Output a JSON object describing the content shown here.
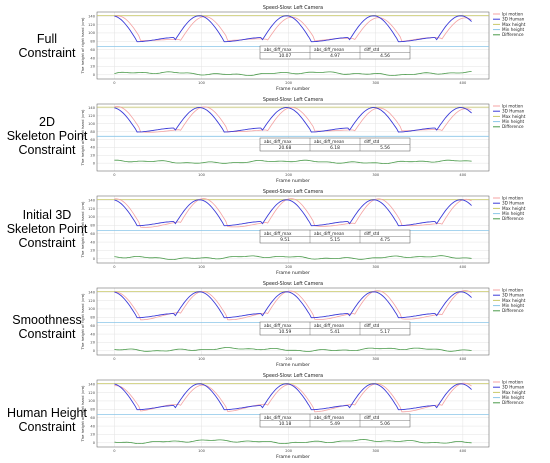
{
  "constraint_labels": [
    [
      "Full",
      "Constraint"
    ],
    [
      "2D",
      "Skeleton Point",
      "Constraint"
    ],
    [
      "Initial 3D",
      "Skeleton Point",
      "Constraint"
    ],
    [
      "Smoothness",
      "Constraint"
    ],
    [
      "Human Height",
      "Constraint"
    ]
  ],
  "chart_data": [
    {
      "type": "line",
      "title": "Speed-Slow: Left Camera",
      "xlabel": "Frame number",
      "ylabel": "The height of right hand (cm)",
      "xlim": [
        -20,
        430
      ],
      "ylim": [
        -10,
        150
      ],
      "xticks": [
        0,
        100,
        200,
        300,
        400
      ],
      "yticks": [
        0,
        20,
        40,
        60,
        80,
        100,
        120,
        140
      ],
      "grid": true,
      "legend_position": "right",
      "series": [
        {
          "name": "lpi motion",
          "color": "#f4a3a3"
        },
        {
          "name": "3D Human",
          "color": "#3b3bd8"
        },
        {
          "name": "Max height",
          "color": "#c9c96a"
        },
        {
          "name": "Min height",
          "color": "#8ac6e8"
        },
        {
          "name": "Difference",
          "color": "#4a9a4a"
        }
      ],
      "table": {
        "headers": [
          "abs_diff_max",
          "abs_diff_mean",
          "diff_std"
        ],
        "values": [
          "10.07",
          "4.97",
          "4.56"
        ]
      }
    },
    {
      "type": "line",
      "title": "Speed-Slow: Left Camera",
      "xlabel": "Frame number",
      "ylabel": "The height of right hand (cm)",
      "xlim": [
        -20,
        430
      ],
      "ylim": [
        -20,
        150
      ],
      "xticks": [
        0,
        100,
        200,
        300,
        400
      ],
      "yticks": [
        0,
        20,
        40,
        60,
        80,
        100,
        120,
        140
      ],
      "grid": true,
      "legend_position": "right",
      "series": [
        {
          "name": "lpi motion",
          "color": "#f4a3a3"
        },
        {
          "name": "3D Human",
          "color": "#3b3bd8"
        },
        {
          "name": "Max height",
          "color": "#c9c96a"
        },
        {
          "name": "Min height",
          "color": "#8ac6e8"
        },
        {
          "name": "Difference",
          "color": "#4a9a4a"
        }
      ],
      "table": {
        "headers": [
          "abs_diff_max",
          "abs_diff_mean",
          "diff_std"
        ],
        "values": [
          "20.68",
          "6.18",
          "5.56"
        ]
      }
    },
    {
      "type": "line",
      "title": "Speed-Slow: Left Camera",
      "xlabel": "Frame number",
      "ylabel": "The height of right hand (cm)",
      "xlim": [
        -20,
        430
      ],
      "ylim": [
        -10,
        150
      ],
      "xticks": [
        0,
        100,
        200,
        300,
        400
      ],
      "yticks": [
        0,
        20,
        40,
        60,
        80,
        100,
        120,
        140
      ],
      "grid": true,
      "legend_position": "right",
      "series": [
        {
          "name": "lpi motion",
          "color": "#f4a3a3"
        },
        {
          "name": "3D Human",
          "color": "#3b3bd8"
        },
        {
          "name": "Max height",
          "color": "#c9c96a"
        },
        {
          "name": "Min height",
          "color": "#8ac6e8"
        },
        {
          "name": "Difference",
          "color": "#4a9a4a"
        }
      ],
      "table": {
        "headers": [
          "abs_diff_max",
          "abs_diff_mean",
          "diff_std"
        ],
        "values": [
          "9.51",
          "5.15",
          "4.75"
        ]
      }
    },
    {
      "type": "line",
      "title": "Speed-Slow: Left Camera",
      "xlabel": "Frame number",
      "ylabel": "The height of right hand (cm)",
      "xlim": [
        -20,
        430
      ],
      "ylim": [
        -10,
        150
      ],
      "xticks": [
        0,
        100,
        200,
        300,
        400
      ],
      "yticks": [
        0,
        20,
        40,
        60,
        80,
        100,
        120,
        140
      ],
      "grid": true,
      "legend_position": "right",
      "series": [
        {
          "name": "lpi motion",
          "color": "#f4a3a3"
        },
        {
          "name": "3D Human",
          "color": "#3b3bd8"
        },
        {
          "name": "Max height",
          "color": "#c9c96a"
        },
        {
          "name": "Min height",
          "color": "#8ac6e8"
        },
        {
          "name": "Difference",
          "color": "#4a9a4a"
        }
      ],
      "table": {
        "headers": [
          "abs_diff_max",
          "abs_diff_mean",
          "diff_std"
        ],
        "values": [
          "10.59",
          "5.41",
          "5.17"
        ]
      }
    },
    {
      "type": "line",
      "title": "Speed-Slow: Left Camera",
      "xlabel": "Frame number",
      "ylabel": "The height of right hand (cm)",
      "xlim": [
        -20,
        430
      ],
      "ylim": [
        -10,
        150
      ],
      "xticks": [
        0,
        100,
        200,
        300,
        400
      ],
      "yticks": [
        0,
        20,
        40,
        60,
        80,
        100,
        120,
        140
      ],
      "grid": true,
      "legend_position": "right",
      "series": [
        {
          "name": "lpi motion",
          "color": "#f4a3a3"
        },
        {
          "name": "3D Human",
          "color": "#3b3bd8"
        },
        {
          "name": "Max height",
          "color": "#c9c96a"
        },
        {
          "name": "Min height",
          "color": "#8ac6e8"
        },
        {
          "name": "Difference",
          "color": "#4a9a4a"
        }
      ],
      "table": {
        "headers": [
          "abs_diff_max",
          "abs_diff_mean",
          "diff_std"
        ],
        "values": [
          "10.18",
          "5.49",
          "5.06"
        ]
      }
    }
  ]
}
